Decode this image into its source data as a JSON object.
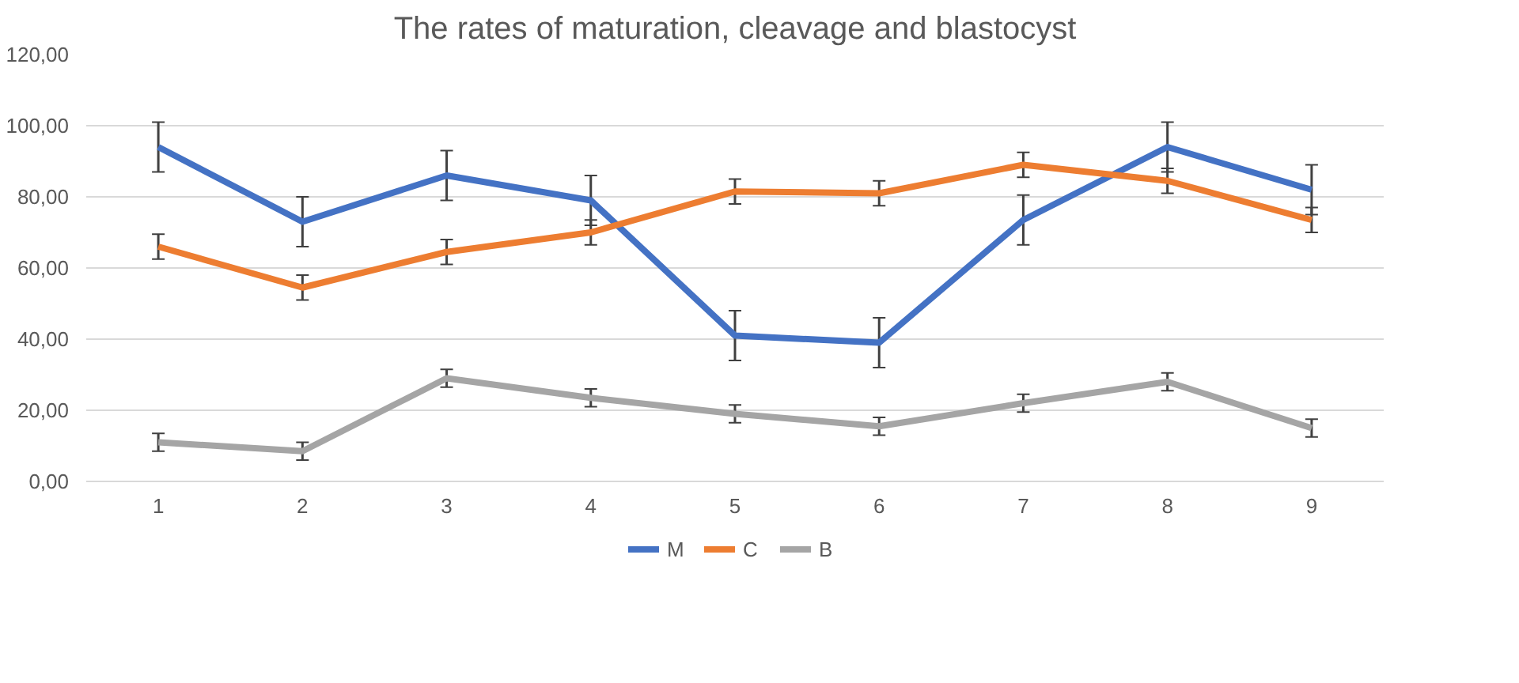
{
  "chart_data": {
    "type": "line",
    "title": "The rates of maturation, cleavage and blastocyst",
    "categories": [
      "1",
      "2",
      "3",
      "4",
      "5",
      "6",
      "7",
      "8",
      "9"
    ],
    "series": [
      {
        "name": "M",
        "color": "#4472c4",
        "values": [
          94,
          73,
          86,
          79,
          41,
          39,
          73.5,
          94,
          82
        ],
        "errors": [
          7,
          7,
          7,
          7,
          7,
          7,
          7,
          7,
          7
        ]
      },
      {
        "name": "C",
        "color": "#ed7d31",
        "values": [
          66,
          54.5,
          64.5,
          70,
          81.5,
          81,
          89,
          84.5,
          73.5
        ],
        "errors": [
          3.5,
          3.5,
          3.5,
          3.5,
          3.5,
          3.5,
          3.5,
          3.5,
          3.5
        ]
      },
      {
        "name": "B",
        "color": "#a5a5a5",
        "values": [
          11,
          8.5,
          29,
          23.5,
          19,
          15.5,
          22,
          28,
          15
        ],
        "errors": [
          2.5,
          2.5,
          2.5,
          2.5,
          2.5,
          2.5,
          2.5,
          2.5,
          2.5
        ]
      }
    ],
    "ylim": [
      0,
      120
    ],
    "yticks": [
      {
        "value": 0,
        "label": "0,00"
      },
      {
        "value": 20,
        "label": "20,00"
      },
      {
        "value": 40,
        "label": "40,00"
      },
      {
        "value": 60,
        "label": "60,00"
      },
      {
        "value": 80,
        "label": "80,00"
      },
      {
        "value": 100,
        "label": "100,00"
      },
      {
        "value": 120,
        "label": "120,00"
      }
    ],
    "grid": "y",
    "legend": "bottom",
    "marker": "none",
    "line_style": "solid"
  }
}
